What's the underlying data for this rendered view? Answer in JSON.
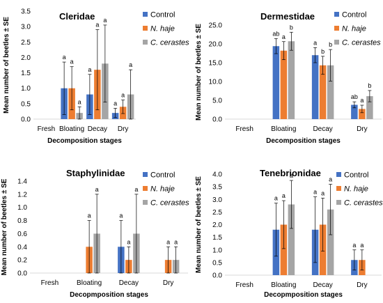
{
  "colors": {
    "Control": "#4472C4",
    "N. haje": "#ED7D31",
    "C. cerastes": "#A5A5A5",
    "axis": "#d9d9d9",
    "text": "#000000",
    "error_bar": "#000000"
  },
  "chart_data": [
    {
      "type": "bar",
      "title": "Cleridae",
      "xlabel": "Decomposition stages",
      "ylabel": "Mean number of beetles ± SE",
      "categories": [
        "Fresh",
        "Bloating",
        "Decay",
        "Dry"
      ],
      "ylim": [
        0,
        3.5
      ],
      "yticks": [
        "0.0",
        "0.5",
        "1.0",
        "1.5",
        "2.0",
        "2.5",
        "3.0",
        "3.5"
      ],
      "legend_position": "top-right",
      "series": [
        {
          "name": "Control",
          "values": [
            null,
            1.0,
            0.8,
            0.2
          ],
          "errors": [
            null,
            0.85,
            0.65,
            0.15
          ],
          "letters": [
            "",
            "a",
            "a",
            "a"
          ]
        },
        {
          "name": "N. haje",
          "values": [
            null,
            1.0,
            1.6,
            0.4
          ],
          "errors": [
            null,
            0.7,
            1.3,
            0.22
          ],
          "letters": [
            "",
            "a",
            "a",
            "a"
          ]
        },
        {
          "name": "C. cerastes",
          "values": [
            null,
            0.2,
            1.8,
            0.8
          ],
          "errors": [
            null,
            0.2,
            1.25,
            0.8
          ],
          "letters": [
            "",
            "a",
            "a",
            "a"
          ]
        }
      ]
    },
    {
      "type": "bar",
      "title": "Dermestidae",
      "xlabel": "Decomposition stages",
      "ylabel": "Mean number of beetles ± SE",
      "categories": [
        "Fresh",
        "Bloating",
        "Decay",
        "Dry"
      ],
      "ylim": [
        0,
        25
      ],
      "yticks": [
        "0.0",
        "5.0",
        "10.0",
        "15.0",
        "20.0",
        "25.0"
      ],
      "legend_position": "top-right",
      "series": [
        {
          "name": "Control",
          "values": [
            null,
            19.4,
            17.0,
            3.8
          ],
          "errors": [
            null,
            2.0,
            2.0,
            0.8
          ],
          "letters": [
            "",
            "ab",
            "a",
            "ab"
          ]
        },
        {
          "name": "N. haje",
          "values": [
            null,
            18.2,
            14.3,
            2.7
          ],
          "errors": [
            null,
            2.4,
            2.4,
            1.0
          ],
          "letters": [
            "",
            "a",
            "b",
            "a"
          ]
        },
        {
          "name": "C. cerastes",
          "values": [
            null,
            20.7,
            14.3,
            6.1
          ],
          "errors": [
            null,
            2.4,
            4.2,
            1.5
          ],
          "letters": [
            "",
            "b",
            "b",
            "b"
          ]
        }
      ]
    },
    {
      "type": "bar",
      "title": "Staphylinidae",
      "xlabel": "Decopmposition stages",
      "ylabel": "Mean number of beetles ± SE",
      "categories": [
        "Fresh",
        "Bloating",
        "Decay",
        "Dry"
      ],
      "ylim": [
        0,
        1.4
      ],
      "yticks": [
        "0.0",
        "0.2",
        "0.4",
        "0.6",
        "0.8",
        "1.0",
        "1.2",
        "1.4"
      ],
      "legend_position": "top-right",
      "series": [
        {
          "name": "Control",
          "values": [
            null,
            null,
            0.4,
            null
          ],
          "errors": [
            null,
            null,
            0.4,
            null
          ],
          "letters": [
            "",
            "",
            "a",
            ""
          ]
        },
        {
          "name": "N. haje",
          "values": [
            null,
            0.4,
            0.2,
            0.2
          ],
          "errors": [
            null,
            0.4,
            0.2,
            0.2
          ],
          "letters": [
            "",
            "a",
            "a",
            "a"
          ]
        },
        {
          "name": "C. cerastes",
          "values": [
            null,
            0.6,
            0.6,
            0.2
          ],
          "errors": [
            null,
            0.6,
            0.6,
            0.2
          ],
          "letters": [
            "",
            "a",
            "a",
            "a"
          ]
        }
      ]
    },
    {
      "type": "bar",
      "title": "Tenebrionidae",
      "xlabel": "Decopmposition stages",
      "ylabel": "Mean number of beetles ± SE",
      "categories": [
        "Fresh",
        "Bloating",
        "Decay",
        "Dry"
      ],
      "ylim": [
        0,
        4.0
      ],
      "yticks": [
        "0.0",
        "0.5",
        "1.0",
        "1.5",
        "2.0",
        "2.5",
        "3.0",
        "3.5",
        "4.0"
      ],
      "legend_position": "top-right",
      "series": [
        {
          "name": "Control",
          "values": [
            null,
            1.8,
            1.8,
            0.6
          ],
          "errors": [
            null,
            1.05,
            1.3,
            0.4
          ],
          "letters": [
            "",
            "a",
            "a",
            "a"
          ]
        },
        {
          "name": "N. haje",
          "values": [
            null,
            2.0,
            2.0,
            0.6
          ],
          "errors": [
            null,
            0.95,
            1.05,
            0.4
          ],
          "letters": [
            "",
            "a",
            "a",
            "a"
          ]
        },
        {
          "name": "C. cerastes",
          "values": [
            null,
            2.8,
            2.6,
            null
          ],
          "errors": [
            null,
            0.95,
            1.0,
            null
          ],
          "letters": [
            "",
            "a",
            "a",
            ""
          ]
        }
      ]
    }
  ]
}
